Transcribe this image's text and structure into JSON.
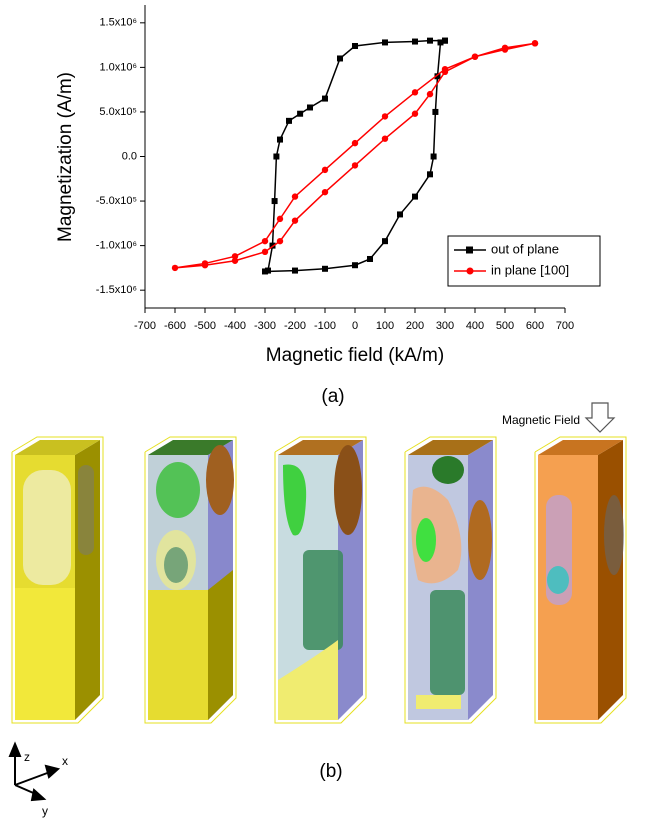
{
  "chart_data": {
    "type": "line",
    "caption": "(a)",
    "xlabel": "Magnetic field (kA/m)",
    "ylabel": "Magnetization (A/m)",
    "xlim": [
      -700,
      700
    ],
    "xticks": [
      -700,
      -600,
      -500,
      -400,
      -300,
      -200,
      -100,
      0,
      100,
      200,
      300,
      400,
      500,
      600,
      700
    ],
    "ylim": [
      -1700000,
      1700000
    ],
    "yticks": [
      {
        "value": -1500000,
        "label": "-1.5x10⁶"
      },
      {
        "value": -1000000,
        "label": "-1.0x10⁶"
      },
      {
        "value": -500000,
        "label": "-5.0x10⁵"
      },
      {
        "value": 0,
        "label": "0.0"
      },
      {
        "value": 500000,
        "label": "5.0x10⁵"
      },
      {
        "value": 1000000,
        "label": "1.0x10⁶"
      },
      {
        "value": 1500000,
        "label": "1.5x10⁶"
      }
    ],
    "legend": "lower right",
    "series": [
      {
        "name": "out of plane",
        "color": "#000000",
        "marker": "square",
        "x": [
          300,
          250,
          200,
          100,
          0,
          -50,
          -100,
          -150,
          -183,
          -220,
          -250,
          -262,
          -268,
          -275,
          -290,
          -300,
          -200,
          -100,
          0,
          50,
          100,
          150,
          200,
          250,
          262,
          268,
          275,
          285,
          300
        ],
        "values": [
          1300000,
          1300000,
          1290000,
          1280000,
          1240000,
          1100000,
          650000,
          550000,
          480000,
          400000,
          190000,
          0,
          -500000,
          -1000000,
          -1280000,
          -1290000,
          -1280000,
          -1260000,
          -1220000,
          -1150000,
          -950000,
          -650000,
          -450000,
          -200000,
          0,
          500000,
          900000,
          1280000,
          1300000
        ]
      },
      {
        "name": "in plane [100]",
        "color": "#ff0000",
        "marker": "circle",
        "x": [
          600,
          500,
          400,
          300,
          200,
          100,
          0,
          -100,
          -200,
          -250,
          -300,
          -400,
          -500,
          -600,
          -500,
          -400,
          -300,
          -250,
          -200,
          -100,
          0,
          100,
          200,
          250,
          300,
          400,
          500,
          600
        ],
        "values": [
          1270000,
          1220000,
          1120000,
          980000,
          720000,
          450000,
          150000,
          -150000,
          -450000,
          -700000,
          -950000,
          -1120000,
          -1200000,
          -1250000,
          -1220000,
          -1170000,
          -1070000,
          -950000,
          -720000,
          -400000,
          -100000,
          200000,
          480000,
          700000,
          950000,
          1120000,
          1200000,
          1270000
        ]
      }
    ]
  },
  "panel_b": {
    "caption": "(b)",
    "field_label": "Magnetic Field",
    "axis_z": "z",
    "axis_x": "x",
    "axis_y": "y"
  }
}
